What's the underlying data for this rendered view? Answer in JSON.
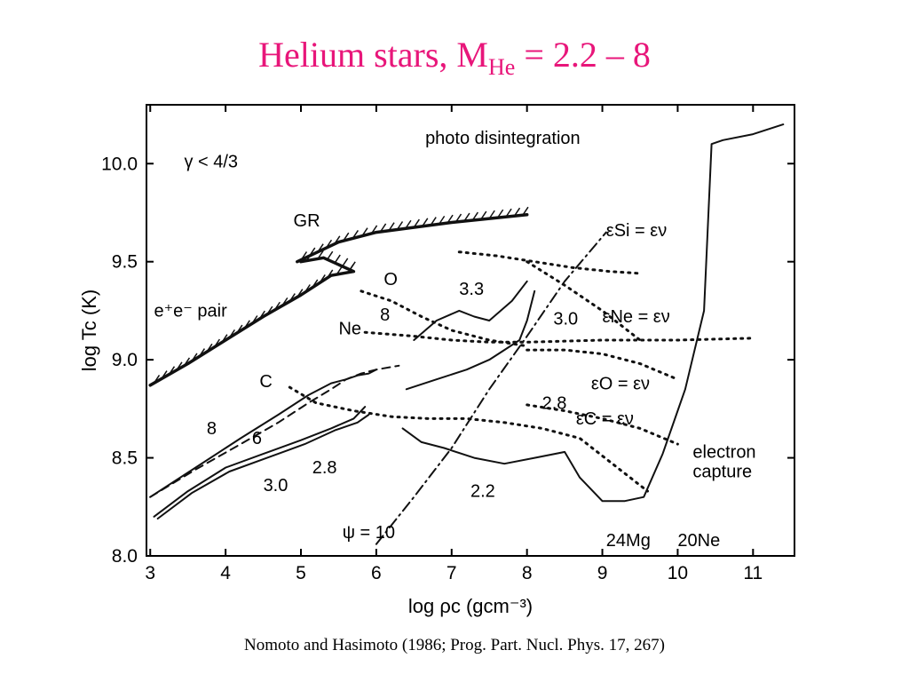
{
  "slide": {
    "title_main": "Helium stars, M",
    "title_sub": "He",
    "title_tail": " = 2.2 – 8",
    "caption": "Nomoto and Hasimoto (1986; Prog. Part. Nucl. Phys. 17, 267)",
    "title_color": "#e8167a"
  },
  "chart_data": {
    "type": "line",
    "xlabel": "log ρc (gcm⁻³)",
    "ylabel": "log Tc (K)",
    "xlim": [
      2.95,
      11.55
    ],
    "ylim": [
      8.0,
      10.3
    ],
    "xticks": [
      "3",
      "4",
      "5",
      "6",
      "7",
      "8",
      "9",
      "10",
      "11"
    ],
    "yticks": [
      "8.0",
      "8.5",
      "9.0",
      "9.5",
      "10.0"
    ],
    "grid": false,
    "annotations": [
      {
        "text": "photo disintegration",
        "x": 6.65,
        "y": 10.1
      },
      {
        "text": "γ < 4/3",
        "x": 3.45,
        "y": 9.98
      },
      {
        "text": "GR",
        "x": 4.9,
        "y": 9.68
      },
      {
        "text": "e⁺e⁻ pair",
        "x": 3.05,
        "y": 9.22
      },
      {
        "text": "O",
        "x": 6.1,
        "y": 9.38
      },
      {
        "text": "8",
        "x": 6.05,
        "y": 9.2
      },
      {
        "text": "Ne",
        "x": 5.5,
        "y": 9.13
      },
      {
        "text": "C",
        "x": 4.45,
        "y": 8.86
      },
      {
        "text": "8",
        "x": 3.75,
        "y": 8.62
      },
      {
        "text": "6",
        "x": 4.35,
        "y": 8.57
      },
      {
        "text": "3.3",
        "x": 7.1,
        "y": 9.33
      },
      {
        "text": "3.0",
        "x": 8.35,
        "y": 9.18
      },
      {
        "text": "2.8",
        "x": 8.2,
        "y": 8.75
      },
      {
        "text": "2.2",
        "x": 7.25,
        "y": 8.3
      },
      {
        "text": "3.0",
        "x": 4.5,
        "y": 8.33
      },
      {
        "text": "2.8",
        "x": 5.15,
        "y": 8.42
      },
      {
        "text": "ψ = 10",
        "x": 5.55,
        "y": 8.09
      },
      {
        "text": "εSi = εν",
        "x": 9.05,
        "y": 9.63
      },
      {
        "text": "εNe = εν",
        "x": 9.0,
        "y": 9.19
      },
      {
        "text": "εO = εν",
        "x": 8.85,
        "y": 8.85
      },
      {
        "text": "εC = εν",
        "x": 8.65,
        "y": 8.67
      },
      {
        "text": "electron",
        "x": 10.2,
        "y": 8.5
      },
      {
        "text": "capture",
        "x": 10.2,
        "y": 8.4
      },
      {
        "text": "24Mg",
        "x": 9.05,
        "y": 8.05
      },
      {
        "text": "20Ne",
        "x": 10.0,
        "y": 8.05
      }
    ],
    "series": [
      {
        "label": "8",
        "style": "solid",
        "x": [
          3.0,
          3.6,
          4.2,
          4.7,
          5.1,
          5.4,
          5.6,
          5.75,
          5.9,
          6.0
        ],
        "y": [
          8.3,
          8.45,
          8.6,
          8.72,
          8.82,
          8.88,
          8.9,
          8.92,
          8.93,
          8.95
        ]
      },
      {
        "label": "6",
        "style": "dashed",
        "x": [
          3.0,
          3.6,
          4.2,
          4.7,
          5.1,
          5.4,
          5.6,
          5.8,
          6.0,
          6.3
        ],
        "y": [
          8.3,
          8.44,
          8.57,
          8.68,
          8.78,
          8.85,
          8.9,
          8.93,
          8.95,
          8.97
        ]
      },
      {
        "label": "3.0",
        "style": "solid",
        "x": [
          3.05,
          3.5,
          4.0,
          4.5,
          5.0,
          5.4,
          5.7,
          5.85
        ],
        "y": [
          8.2,
          8.33,
          8.45,
          8.52,
          8.59,
          8.65,
          8.7,
          8.76
        ]
      },
      {
        "label": "2.8",
        "style": "solid",
        "x": [
          3.1,
          3.55,
          4.05,
          4.55,
          5.05,
          5.45,
          5.75,
          5.9
        ],
        "y": [
          8.19,
          8.32,
          8.43,
          8.5,
          8.57,
          8.64,
          8.68,
          8.72
        ]
      },
      {
        "label": "3.3",
        "style": "solid",
        "x": [
          6.5,
          6.8,
          7.1,
          7.3,
          7.5,
          7.8,
          8.0
        ],
        "y": [
          9.1,
          9.2,
          9.25,
          9.22,
          9.2,
          9.3,
          9.4
        ]
      },
      {
        "label": "3.0",
        "style": "solid",
        "x": [
          6.4,
          6.8,
          7.2,
          7.5,
          7.7,
          7.9,
          8.0,
          8.1
        ],
        "y": [
          8.85,
          8.9,
          8.95,
          9.0,
          9.05,
          9.1,
          9.2,
          9.35
        ]
      },
      {
        "label": "2.2",
        "style": "solid",
        "x": [
          6.35,
          6.6,
          6.9,
          7.3,
          7.7,
          8.1,
          8.5,
          8.7,
          9.0,
          9.3,
          9.55,
          9.8,
          10.1,
          10.35,
          10.45,
          10.6,
          11.0,
          11.4
        ],
        "y": [
          8.65,
          8.58,
          8.55,
          8.5,
          8.47,
          8.5,
          8.53,
          8.4,
          8.28,
          8.28,
          8.3,
          8.52,
          8.85,
          9.25,
          10.1,
          10.12,
          10.15,
          10.2
        ]
      },
      {
        "label": "O",
        "style": "dotted",
        "x": [
          5.8,
          6.2,
          6.6,
          7.0,
          7.5,
          8.0
        ],
        "y": [
          9.35,
          9.3,
          9.22,
          9.15,
          9.1,
          9.07
        ]
      },
      {
        "label": "Ne",
        "style": "dotted",
        "x": [
          5.85,
          6.5,
          7.0,
          7.5,
          8.0,
          9.0,
          10.0,
          11.0
        ],
        "y": [
          9.14,
          9.12,
          9.1,
          9.09,
          9.09,
          9.1,
          9.1,
          9.11
        ]
      },
      {
        "label": "C",
        "style": "dotted",
        "x": [
          4.85,
          5.2,
          5.7,
          6.2,
          6.7,
          7.2,
          7.7,
          8.2,
          8.7,
          9.2,
          9.6
        ],
        "y": [
          8.86,
          8.78,
          8.74,
          8.71,
          8.7,
          8.7,
          8.68,
          8.65,
          8.6,
          8.45,
          8.33
        ]
      },
      {
        "label": "εSi = εν",
        "style": "dotted",
        "x": [
          7.1,
          7.6,
          8.1,
          8.6,
          9.1,
          9.5
        ],
        "y": [
          9.55,
          9.53,
          9.5,
          9.47,
          9.45,
          9.44
        ]
      },
      {
        "label": "εNe = εν",
        "style": "dotted",
        "x": [
          8.0,
          8.5,
          9.0,
          9.5
        ],
        "y": [
          9.5,
          9.38,
          9.25,
          9.1
        ]
      },
      {
        "label": "εO = εν",
        "style": "dotted",
        "x": [
          8.0,
          8.5,
          9.0,
          9.5,
          10.0
        ],
        "y": [
          9.05,
          9.05,
          9.03,
          8.98,
          8.9
        ]
      },
      {
        "label": "εC = εν",
        "style": "dotted",
        "x": [
          8.0,
          8.5,
          9.0,
          9.5,
          10.0
        ],
        "y": [
          8.77,
          8.74,
          8.7,
          8.65,
          8.57
        ]
      },
      {
        "label": "ψ = 10",
        "style": "dashdot",
        "x": [
          6.0,
          6.5,
          7.0,
          7.5,
          8.0,
          8.5,
          9.05
        ],
        "y": [
          8.06,
          8.3,
          8.55,
          8.85,
          9.12,
          9.4,
          9.65
        ]
      },
      {
        "label": "GR",
        "style": "hatched",
        "x": [
          4.95,
          5.5,
          6.0,
          7.0,
          8.0
        ],
        "y": [
          9.5,
          9.6,
          9.65,
          9.7,
          9.74
        ]
      },
      {
        "label": "e⁺e⁻ pair",
        "style": "hatched",
        "x": [
          3.0,
          3.5,
          4.0,
          4.5,
          5.0,
          5.4,
          5.7,
          5.3,
          5.0
        ],
        "y": [
          8.87,
          8.98,
          9.1,
          9.22,
          9.33,
          9.43,
          9.45,
          9.52,
          9.5
        ]
      }
    ]
  }
}
